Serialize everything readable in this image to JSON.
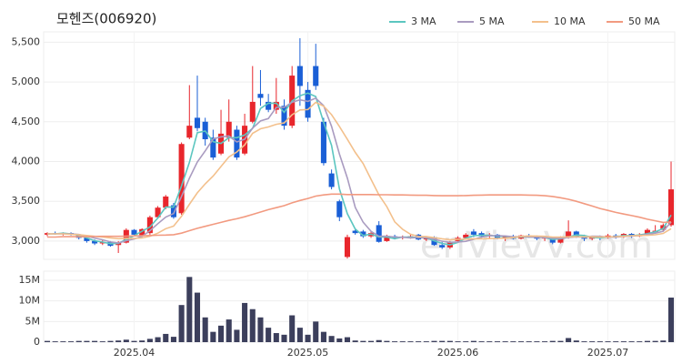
{
  "chart_data": {
    "type": "candlestick",
    "title": "모헨즈(006920)",
    "watermark": "enVievV.com",
    "up_color": "#e8262c",
    "down_color": "#1a5fd6",
    "volume_color": "#3c3f5c",
    "grid": true,
    "legend": "top-right",
    "categories": [
      null,
      null,
      null,
      null,
      null,
      null,
      null,
      null,
      null,
      null,
      null,
      "2025.04",
      null,
      null,
      null,
      null,
      null,
      null,
      null,
      null,
      null,
      null,
      null,
      null,
      null,
      null,
      null,
      null,
      null,
      null,
      null,
      null,
      null,
      "2025.05",
      null,
      null,
      null,
      null,
      null,
      null,
      null,
      null,
      null,
      null,
      null,
      null,
      null,
      null,
      null,
      null,
      null,
      null,
      "2025.06",
      null,
      null,
      null,
      null,
      null,
      null,
      null,
      null,
      null,
      null,
      null,
      null,
      null,
      null,
      null,
      null,
      null,
      null,
      "2025.07",
      null,
      null,
      null,
      null,
      null,
      null,
      null,
      null
    ],
    "open": [
      3080,
      3100,
      3090,
      3100,
      3080,
      3040,
      3000,
      2970,
      2990,
      2950,
      2980,
      3140,
      3060,
      3100,
      3300,
      3420,
      3450,
      3350,
      4300,
      4550,
      4500,
      4300,
      4100,
      4300,
      4400,
      4100,
      4500,
      4850,
      4750,
      4650,
      4700,
      4450,
      5200,
      4900,
      5200,
      4500,
      3850,
      3500,
      2800,
      3130,
      3120,
      3060,
      3200,
      3000,
      3060,
      3040,
      3050,
      3080,
      3020,
      3050,
      2950,
      2920,
      3000,
      3040,
      3120,
      3100,
      3060,
      3080,
      3030,
      3060,
      3030,
      3070,
      3050,
      3030,
      3020,
      2980,
      3050,
      3120,
      3060,
      3030,
      3050,
      3040,
      3070,
      3050,
      3090,
      3060,
      3080,
      3110,
      3140,
      3200
    ],
    "high": [
      3110,
      3120,
      3110,
      3110,
      3090,
      3060,
      3020,
      3010,
      3000,
      3000,
      3160,
      3150,
      3160,
      3320,
      3440,
      3580,
      3480,
      4240,
      4960,
      5080,
      4550,
      4400,
      4650,
      4780,
      4450,
      4600,
      5200,
      5150,
      4850,
      5050,
      4780,
      5200,
      5550,
      5000,
      5480,
      4550,
      3900,
      3520,
      3080,
      3160,
      3140,
      3120,
      3250,
      3080,
      3080,
      3070,
      3090,
      3090,
      3060,
      3060,
      2990,
      3000,
      3060,
      3100,
      3150,
      3120,
      3100,
      3090,
      3070,
      3080,
      3080,
      3090,
      3070,
      3060,
      3040,
      3060,
      3260,
      3130,
      3080,
      3060,
      3070,
      3090,
      3090,
      3100,
      3100,
      3100,
      3160,
      3200,
      3220,
      4000
    ],
    "low": [
      3060,
      3080,
      3070,
      3070,
      3020,
      2980,
      2950,
      2950,
      2930,
      2850,
      2970,
      3060,
      3050,
      3080,
      3280,
      3400,
      3280,
      3330,
      4280,
      4380,
      4200,
      4020,
      4080,
      4250,
      4020,
      4080,
      4480,
      4700,
      4620,
      4600,
      4400,
      4420,
      4700,
      4500,
      4900,
      3950,
      3650,
      3250,
      2780,
      3080,
      3040,
      3040,
      2980,
      2990,
      3020,
      3020,
      3030,
      3010,
      3000,
      2940,
      2900,
      2900,
      2990,
      3020,
      3050,
      3040,
      3030,
      3020,
      3000,
      3020,
      3020,
      3040,
      3010,
      3000,
      2960,
      2970,
      3030,
      3040,
      3000,
      3010,
      3010,
      3030,
      3030,
      3040,
      3040,
      3050,
      3070,
      3090,
      3120,
      3180
    ],
    "close": [
      3100,
      3090,
      3100,
      3080,
      3040,
      3000,
      2970,
      2990,
      2940,
      2980,
      3140,
      3080,
      3150,
      3300,
      3420,
      3560,
      3300,
      4220,
      4450,
      4420,
      4280,
      4050,
      4350,
      4500,
      4050,
      4450,
      4750,
      4800,
      4650,
      4750,
      4450,
      5080,
      4950,
      4550,
      4950,
      3980,
      3680,
      3300,
      3050,
      3100,
      3060,
      3100,
      2990,
      3060,
      3040,
      3050,
      3060,
      3020,
      3040,
      2950,
      2920,
      2990,
      3040,
      3080,
      3080,
      3060,
      3080,
      3040,
      3060,
      3030,
      3070,
      3050,
      3030,
      3050,
      2980,
      3050,
      3120,
      3060,
      3030,
      3050,
      3040,
      3070,
      3050,
      3090,
      3060,
      3080,
      3140,
      3130,
      3200,
      3650
    ],
    "volume": [
      300000,
      200000,
      200000,
      200000,
      300000,
      300000,
      300000,
      200000,
      300000,
      400000,
      600000,
      300000,
      400000,
      800000,
      1200000,
      2000000,
      1300000,
      9000000,
      15800000,
      12000000,
      6000000,
      2500000,
      4000000,
      5500000,
      3000000,
      9500000,
      8000000,
      6000000,
      3500000,
      2200000,
      1800000,
      6500000,
      3500000,
      1800000,
      5000000,
      2500000,
      1500000,
      900000,
      1200000,
      400000,
      300000,
      300000,
      500000,
      300000,
      200000,
      200000,
      200000,
      200000,
      200000,
      300000,
      300000,
      300000,
      200000,
      200000,
      300000,
      200000,
      200000,
      200000,
      200000,
      200000,
      200000,
      200000,
      200000,
      200000,
      300000,
      300000,
      1000000,
      400000,
      200000,
      200000,
      200000,
      200000,
      200000,
      200000,
      200000,
      200000,
      300000,
      300000,
      400000,
      10800000
    ],
    "series": [
      {
        "name": "3 MA",
        "color": "#5cc6c0",
        "values": [
          3090,
          3090,
          3100,
          3090,
          3073,
          3040,
          3003,
          2987,
          2967,
          2970,
          3020,
          3067,
          3123,
          3177,
          3290,
          3427,
          3427,
          3693,
          3990,
          4363,
          4383,
          4250,
          4227,
          4300,
          4300,
          4333,
          4417,
          4667,
          4733,
          4733,
          4617,
          4760,
          4827,
          4860,
          4817,
          4493,
          4203,
          3653,
          3343,
          3150,
          3070,
          3087,
          3050,
          3050,
          3030,
          3050,
          3050,
          3043,
          3040,
          3003,
          2970,
          2953,
          2983,
          3037,
          3067,
          3073,
          3073,
          3060,
          3060,
          3043,
          3053,
          3050,
          3050,
          3043,
          3020,
          3027,
          3050,
          3077,
          3070,
          3047,
          3040,
          3053,
          3053,
          3070,
          3067,
          3077,
          3093,
          3117,
          3157,
          3327
        ]
      },
      {
        "name": "5 MA",
        "color": "#a99bc0",
        "values": [
          3090,
          3090,
          3090,
          3090,
          3082,
          3062,
          3038,
          3016,
          2988,
          2976,
          3004,
          3026,
          3058,
          3130,
          3218,
          3302,
          3346,
          3560,
          3790,
          3994,
          4134,
          4284,
          4310,
          4320,
          4246,
          4280,
          4420,
          4510,
          4540,
          4680,
          4680,
          4746,
          4776,
          4756,
          4796,
          4702,
          4442,
          4092,
          3792,
          3422,
          3238,
          3122,
          3060,
          3062,
          3050,
          3048,
          3040,
          3046,
          3042,
          3024,
          2998,
          2984,
          2988,
          2996,
          3022,
          3050,
          3068,
          3068,
          3064,
          3054,
          3056,
          3050,
          3048,
          3046,
          3036,
          3032,
          3046,
          3052,
          3048,
          3062,
          3060,
          3050,
          3048,
          3060,
          3062,
          3070,
          3084,
          3100,
          3122,
          3240
        ]
      },
      {
        "name": "10 MA",
        "color": "#f3c08c",
        "values": [
          3090,
          3090,
          3090,
          3085,
          3080,
          3070,
          3060,
          3050,
          3040,
          3030,
          3034,
          3033,
          3039,
          3061,
          3099,
          3155,
          3188,
          3311,
          3462,
          3606,
          3720,
          3817,
          3937,
          4057,
          4120,
          4209,
          4354,
          4412,
          4435,
          4468,
          4485,
          4588,
          4648,
          4653,
          4743,
          4696,
          4589,
          4439,
          4279,
          4114,
          3975,
          3777,
          3581,
          3432,
          3241,
          3148,
          3086,
          3058,
          3057,
          3042,
          3028,
          3017,
          3022,
          3024,
          3028,
          3029,
          3031,
          3033,
          3035,
          3043,
          3058,
          3064,
          3063,
          3060,
          3050,
          3049,
          3053,
          3055,
          3052,
          3054,
          3051,
          3053,
          3055,
          3059,
          3067,
          3070,
          3072,
          3079,
          3096,
          3156
        ]
      },
      {
        "name": "50 MA",
        "color": "#f29a80",
        "values": [
          3050,
          3050,
          3055,
          3055,
          3055,
          3055,
          3058,
          3060,
          3060,
          3060,
          3062,
          3065,
          3068,
          3070,
          3073,
          3076,
          3080,
          3100,
          3130,
          3160,
          3185,
          3210,
          3235,
          3260,
          3280,
          3305,
          3335,
          3365,
          3395,
          3420,
          3445,
          3480,
          3510,
          3535,
          3565,
          3580,
          3590,
          3590,
          3585,
          3585,
          3585,
          3585,
          3582,
          3582,
          3580,
          3580,
          3578,
          3575,
          3575,
          3572,
          3570,
          3570,
          3570,
          3572,
          3575,
          3578,
          3580,
          3580,
          3580,
          3580,
          3580,
          3578,
          3575,
          3570,
          3560,
          3545,
          3525,
          3500,
          3470,
          3440,
          3410,
          3385,
          3360,
          3340,
          3320,
          3300,
          3275,
          3255,
          3235,
          3240
        ]
      }
    ],
    "ylim": [
      2770,
      5630
    ],
    "yticks": [
      {
        "value": 3000,
        "label": "3,000"
      },
      {
        "value": 3500,
        "label": "3,500"
      },
      {
        "value": 4000,
        "label": "4,000"
      },
      {
        "value": 4500,
        "label": "4,500"
      },
      {
        "value": 5000,
        "label": "5,000"
      },
      {
        "value": 5500,
        "label": "5,500"
      }
    ],
    "volume_lim": [
      0,
      17200000
    ],
    "volume_ticks": [
      {
        "value": 0,
        "label": "0"
      },
      {
        "value": 5000000,
        "label": "5M"
      },
      {
        "value": 10000000,
        "label": "10M"
      },
      {
        "value": 15000000,
        "label": "15M"
      }
    ]
  }
}
